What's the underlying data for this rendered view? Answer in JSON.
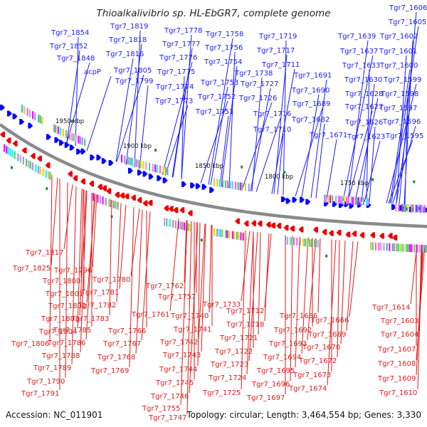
{
  "title": "Thioalkalivibrio sp. HL-EbGR7, complete genome",
  "accession": "Accession: NC_011901",
  "summary": "Topology: circular; Length: 3,464,554 bp; Genes: 3,330",
  "colors": {
    "top_labels": "#1a1aff",
    "bottom_labels": "#e01a1a",
    "backbone": "#8a8a8a",
    "rna": "#2e8b2e"
  },
  "kbp_ticks": [
    "1950 kbp",
    "1900 kbp",
    "1850 kbp",
    "1800 kbp",
    "1750 kbp"
  ],
  "top_labels": [
    "Tgr7_1854",
    "Tgr7_1852",
    "Tgr7_1848",
    "acpP",
    "Tgr7_1819",
    "Tgr7_1818",
    "Tgr7_1816",
    "Tgr7_1805",
    "Tgr7_1799",
    "Tgr7_1778",
    "Tgr7_1777",
    "Tgr7_1776",
    "Tgr7_1775",
    "Tgr7_1774",
    "Tgr7_1773",
    "Tgr7_1758",
    "Tgr7_1756",
    "Tgr7_1754",
    "Tgr7_1753",
    "Tgr7_1752",
    "Tgr7_1751",
    "Tgr7_1738",
    "Tgr7_1727",
    "Tgr7_1726",
    "Tgr7_1719",
    "Tgr7_1717",
    "Tgr7_1711",
    "Tgr7_1716",
    "Tgr7_1710",
    "Tgr7_1691",
    "Tgr7_1690",
    "Tgr7_1689",
    "Tgr7_1682",
    "Tgr7_1671",
    "Tgr7_1639",
    "Tgr7_1637",
    "Tgr7_1633",
    "Tgr7_1630",
    "Tgr7_1628",
    "Tgr7_1627",
    "Tgr7_1626",
    "Tgr7_1623",
    "Tgr7_1606",
    "Tgr7_1605",
    "Tgr7_1602",
    "Tgr7_1601",
    "Tgr7_1600",
    "Tgr7_1599",
    "Tgr7_1598",
    "Tgr7_1597",
    "Tgr7_1596",
    "Tgr7_1595"
  ],
  "bottom_labels": [
    "Tgr7_1817",
    "Tgr7_1825",
    "Tgr7_1796",
    "Tgr7_1800",
    "Tgr7_1801",
    "Tgr7_1802",
    "Tgr7_1803",
    "Tgr7_1804",
    "Tgr7_1806",
    "Tgr7_1785",
    "Tgr7_1786",
    "Tgr7_1788",
    "Tgr7_1789",
    "Tgr7_1790",
    "Tgr7_1791",
    "Tgr7_1780",
    "Tgr7_1781",
    "Tgr7_1782",
    "Tgr7_1783",
    "Tgr7_1766",
    "Tgr7_1767",
    "Tgr7_1768",
    "Tgr7_1769",
    "Tgr7_1762",
    "Tgr7_1757",
    "Tgr7_1761",
    "Tgr7_1742",
    "Tgr7_1743",
    "Tgr7_1744",
    "Tgr7_1745",
    "Tgr7_1746",
    "Tgr7_1755",
    "Tgr7_1747",
    "Tgr7_1740",
    "Tgr7_1741",
    "Tgr7_1733",
    "Tgr7_1712",
    "Tgr7_1718",
    "Tgr7_1721",
    "Tgr7_1722",
    "Tgr7_1723",
    "Tgr7_1724",
    "Tgr7_1725",
    "Tgr7_1686",
    "Tgr7_1692",
    "Tgr7_1693",
    "Tgr7_1694",
    "Tgr7_1695",
    "Tgr7_1696",
    "Tgr7_1697",
    "Tgr7_1666",
    "Tgr7_1669",
    "Tgr7_1670",
    "Tgr7_1672",
    "Tgr7_1673",
    "Tgr7_1674",
    "Tgr7_1614",
    "Tgr7_1603",
    "Tgr7_1604",
    "Tgr7_1607",
    "Tgr7_1608",
    "Tgr7_1609",
    "Tgr7_1610"
  ]
}
